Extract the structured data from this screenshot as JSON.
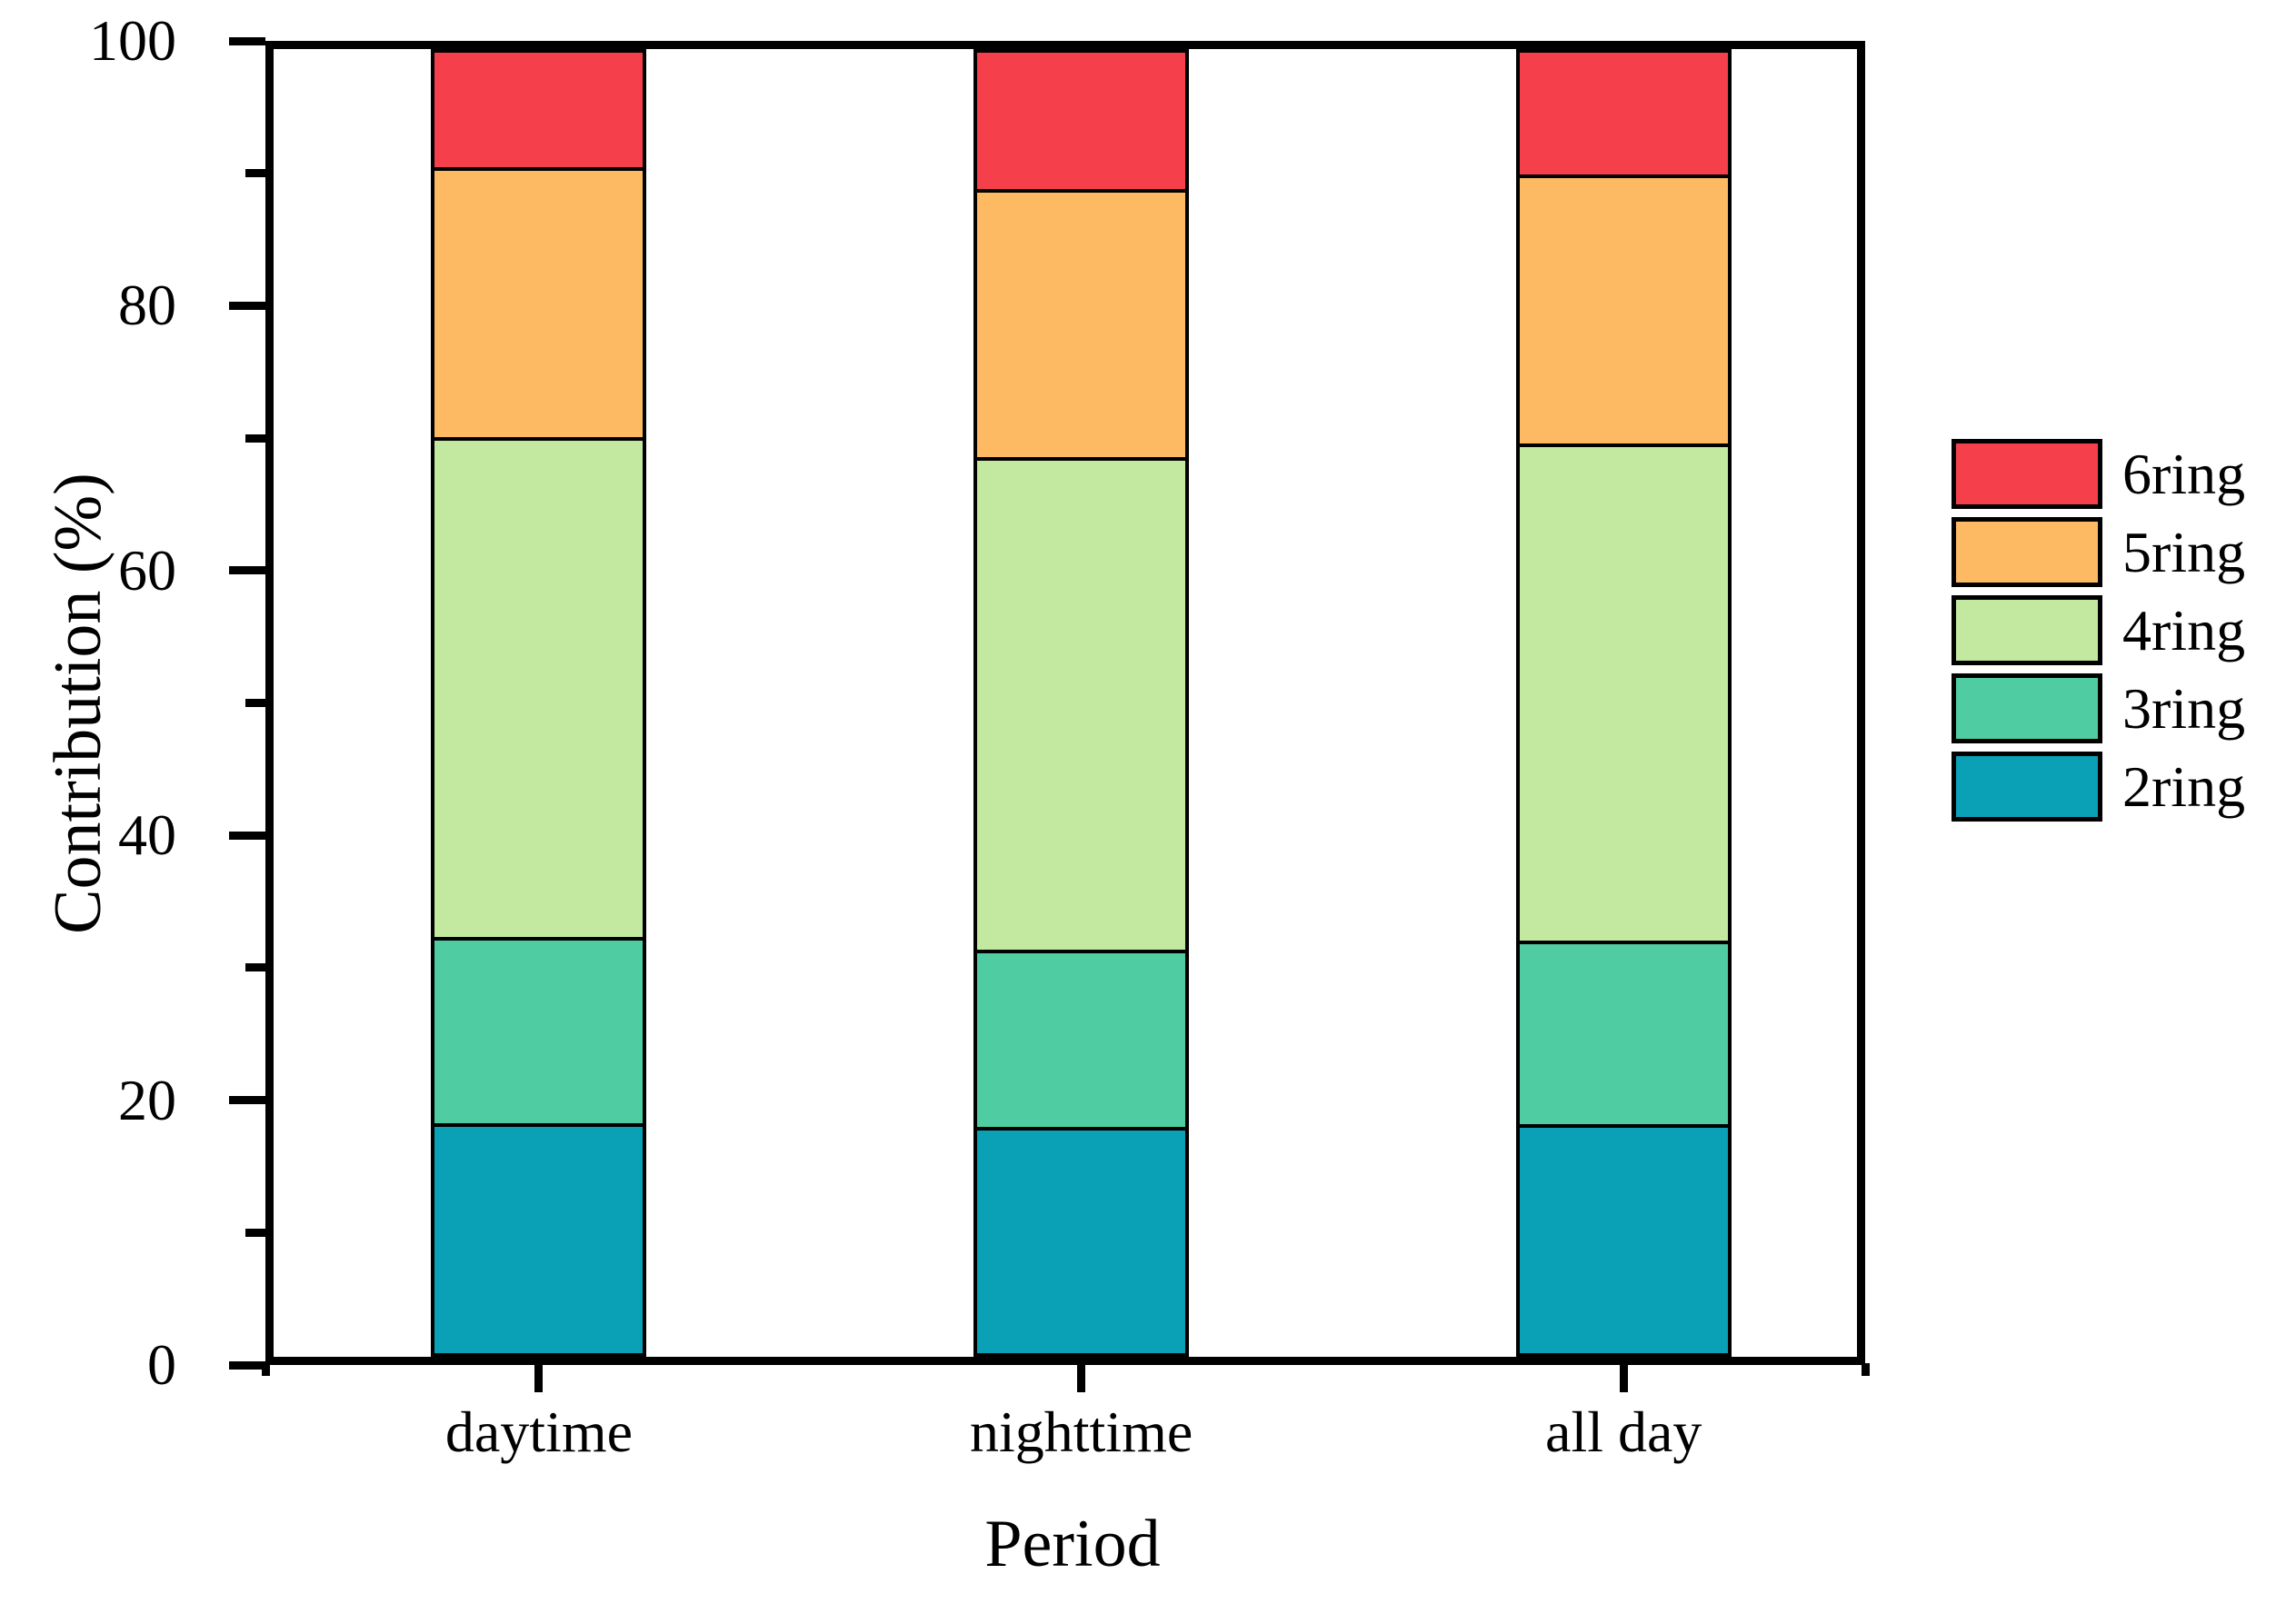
{
  "chart_data": {
    "type": "bar",
    "stacked": true,
    "title": "",
    "xlabel": "Period",
    "ylabel": "Contribution (%)",
    "categories": [
      "daytime",
      "nighttime",
      "all day"
    ],
    "series": [
      {
        "name": "2ring",
        "color": "#0AA0B6",
        "values": [
          17.6,
          17.3,
          17.5
        ]
      },
      {
        "name": "3ring",
        "color": "#4FCCA2",
        "values": [
          14.2,
          13.5,
          14.0
        ]
      },
      {
        "name": "4ring",
        "color": "#C2E99F",
        "values": [
          38.6,
          38.0,
          38.4
        ]
      },
      {
        "name": "5ring",
        "color": "#FDBA62",
        "values": [
          20.7,
          20.6,
          20.6
        ]
      },
      {
        "name": "6ring",
        "color": "#F5404B",
        "values": [
          8.9,
          10.6,
          9.5
        ]
      }
    ],
    "legend_order_top_to_bottom": [
      "6ring",
      "5ring",
      "4ring",
      "3ring",
      "2ring"
    ],
    "legend_position": "right",
    "ylim": [
      0,
      100
    ],
    "yticks_major": [
      0,
      20,
      40,
      60,
      80,
      100
    ],
    "yticks_minor": [
      10,
      30,
      50,
      70,
      90
    ],
    "grid": false,
    "bar_edge_color": "#000000",
    "axis_color": "#000000",
    "background_color": "#ffffff"
  }
}
